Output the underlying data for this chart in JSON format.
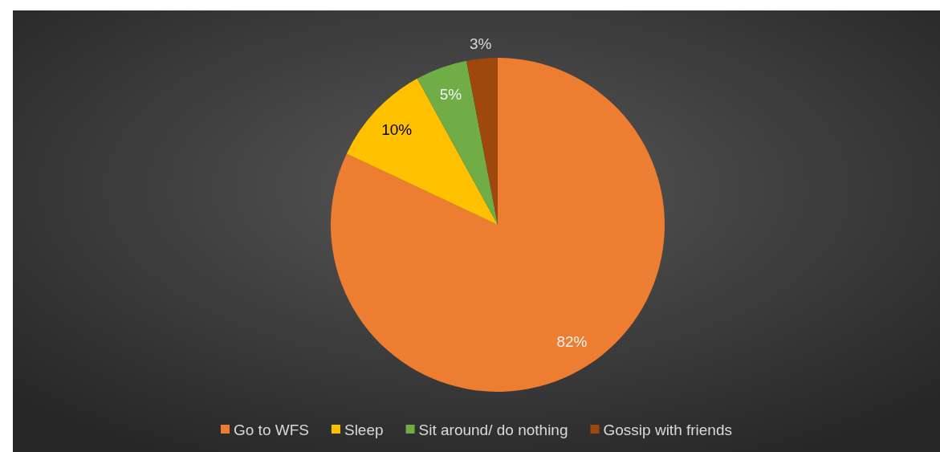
{
  "chart_data": {
    "type": "pie",
    "categories": [
      "Go to WFS",
      "Sleep",
      "Sit around/ do nothing",
      "Gossip with friends"
    ],
    "values": [
      82,
      10,
      5,
      3
    ],
    "colors": [
      "#ed7d31",
      "#ffc000",
      "#70ad47",
      "#9e480e"
    ],
    "value_labels": [
      "82%",
      "10%",
      "5%",
      "3%"
    ],
    "legend": "bottom"
  }
}
